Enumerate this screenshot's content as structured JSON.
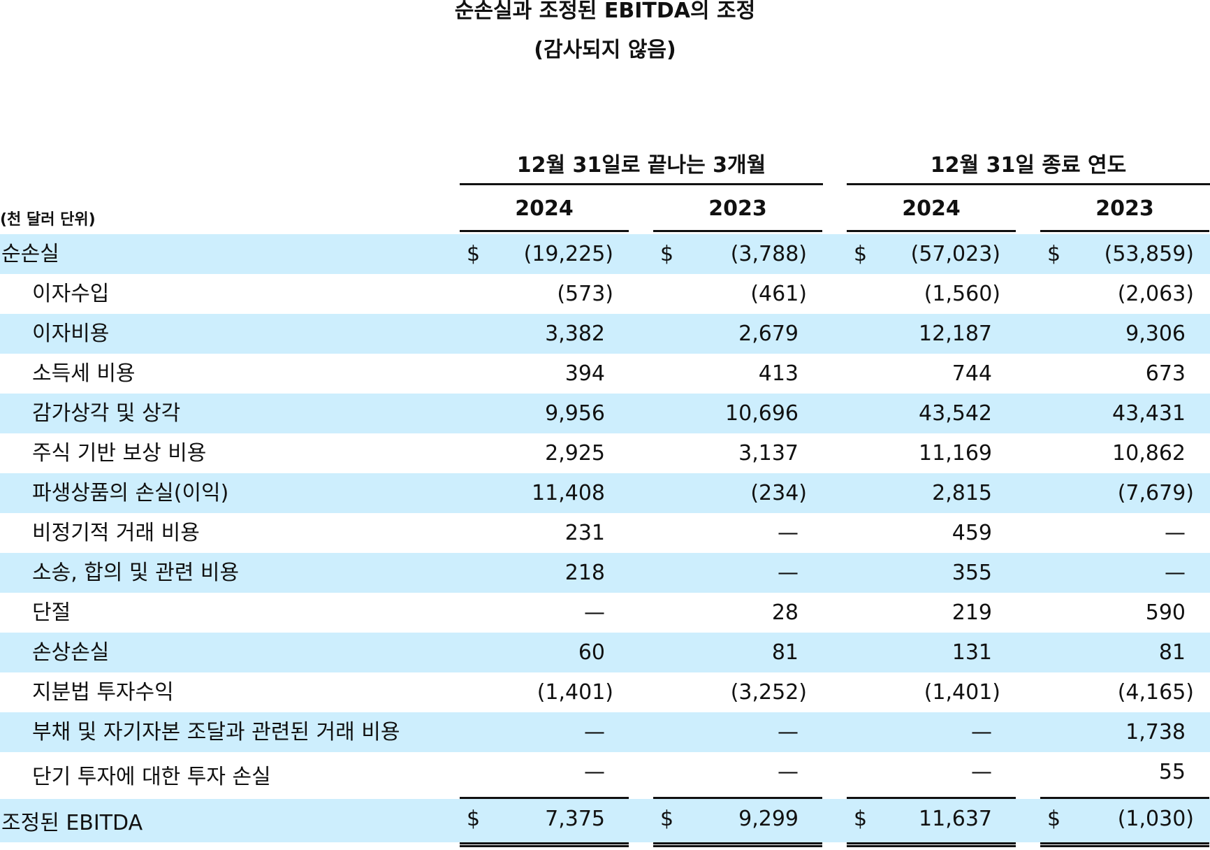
{
  "title": {
    "line1": "순손실과 조정된 EBITDA의 조정",
    "line2": "(감사되지 않음)"
  },
  "header": {
    "period_3m": "12월 31일로 끝나는 3개월",
    "period_year": "12월 31일 종료 연도",
    "units": "(천 달러 단위)",
    "years": [
      "2024",
      "2023",
      "2024",
      "2023"
    ]
  },
  "rows": [
    {
      "label": "순손실",
      "currency": "$",
      "values": [
        "(19,225)",
        "(3,788)",
        "(57,023)",
        "(53,859)"
      ]
    },
    {
      "label": "이자수입",
      "values": [
        "(573)",
        "(461)",
        "(1,560)",
        "(2,063)"
      ]
    },
    {
      "label": "이자비용",
      "values": [
        "3,382",
        "2,679",
        "12,187",
        "9,306"
      ]
    },
    {
      "label": "소득세 비용",
      "values": [
        "394",
        "413",
        "744",
        "673"
      ]
    },
    {
      "label": "감가상각 및 상각",
      "values": [
        "9,956",
        "10,696",
        "43,542",
        "43,431"
      ]
    },
    {
      "label": "주식 기반 보상 비용",
      "values": [
        "2,925",
        "3,137",
        "11,169",
        "10,862"
      ]
    },
    {
      "label": "파생상품의 손실(이익)",
      "values": [
        "11,408",
        "(234)",
        "2,815",
        "(7,679)"
      ]
    },
    {
      "label": "비정기적 거래 비용",
      "values": [
        "231",
        "—",
        "459",
        "—"
      ]
    },
    {
      "label": "소송, 합의 및 관련 비용",
      "values": [
        "218",
        "—",
        "355",
        "—"
      ]
    },
    {
      "label": "단절",
      "values": [
        "—",
        "28",
        "219",
        "590"
      ]
    },
    {
      "label": "손상손실",
      "values": [
        "60",
        "81",
        "131",
        "81"
      ]
    },
    {
      "label": "지분법 투자수익",
      "values": [
        "(1,401)",
        "(3,252)",
        "(1,401)",
        "(4,165)"
      ]
    },
    {
      "label": "부채 및 자기자본 조달과 관련된 거래 비용",
      "values": [
        "—",
        "—",
        "—",
        "1,738"
      ]
    },
    {
      "label": "단기 투자에 대한 투자 손실",
      "values": [
        "—",
        "—",
        "—",
        "55"
      ]
    },
    {
      "label": "조정된 EBITDA",
      "currency": "$",
      "values": [
        "7,375",
        "9,299",
        "11,637",
        "(1,030)"
      ]
    }
  ],
  "colors": {
    "row_shade": "#cdeefd",
    "text": "#111111"
  }
}
